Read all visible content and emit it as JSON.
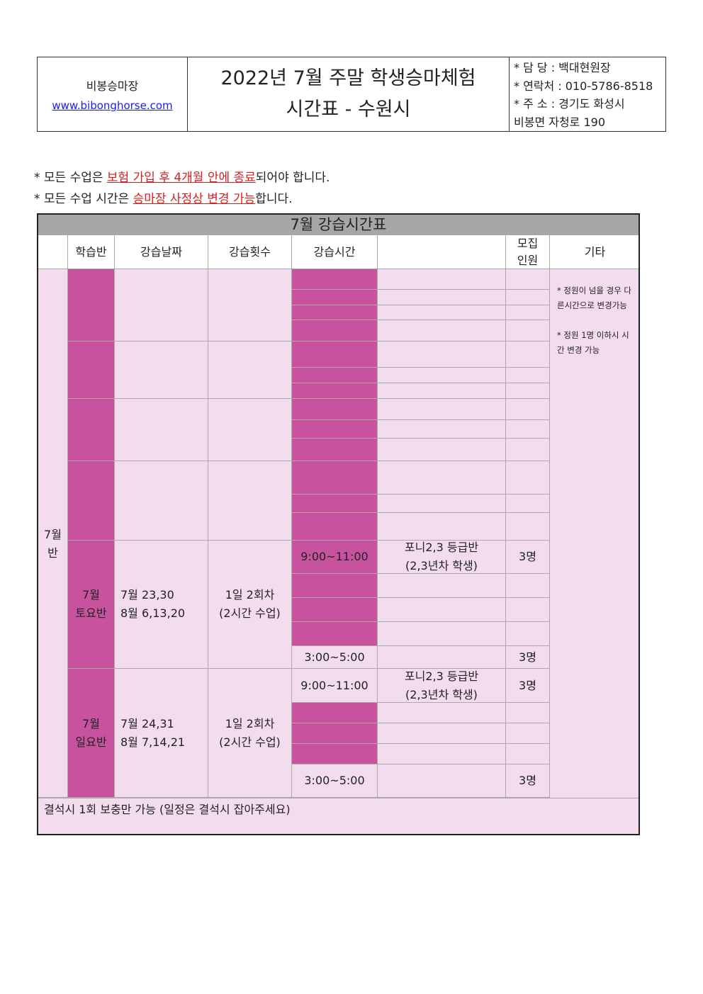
{
  "header": {
    "org_name": "비봉승마장",
    "website": "www.bibonghorse.com",
    "title_line1": "2022년 7월 주말 학생승마체험",
    "title_line2": "시간표 - 수원시",
    "contact": [
      "* 담  당 : 백대현원장",
      "* 연락처 : 010-5786-8518",
      "* 주  소 : 경기도 화성시",
      "비봉면 자청로 190"
    ]
  },
  "notes": {
    "note1_prefix": "* 모든 수업은 ",
    "note1_red": "보험 가입 후 4개월 안에 종료",
    "note1_suffix": "되어야 합니다.",
    "note2_prefix": "* 모든 수업 시간은 ",
    "note2_red": "승마장 사정상 변경 가능",
    "note2_suffix": "합니다."
  },
  "table": {
    "title": "7월 강습시간표",
    "columns": [
      "학습반",
      "강습날짜",
      "강습횟수",
      "강습시간",
      "",
      "모집\n인원",
      "기타"
    ],
    "month_label": "7월\n반",
    "saturday": {
      "class": "7월\n토요반",
      "dates": "7월 23,30\n8월 6,13,20",
      "count": "1일 2회차\n(2시간 수업)",
      "time1": "9:00~11:00",
      "desc": "포니2,3 등급반\n(2,3년차 학생)",
      "cap1": "3명",
      "time2": "3:00~5:00",
      "cap2": "3명"
    },
    "sunday": {
      "class": "7월\n일요반",
      "dates": "7월 24,31\n8월 7,14,21",
      "count": "1일 2회차\n(2시간 수업)",
      "time1": "9:00~11:00",
      "desc": "포니2,3 등급반\n(2,3년차 학생)",
      "cap1": "3명",
      "time2": "3:00~5:00",
      "cap2": "3명"
    },
    "etc_note1": "* 정원이 넘을 경우 다른시간으로 변경가능",
    "etc_note2": "* 정원 1명 이하시 시간 변경 가능",
    "footer": "결석시 1회 보충만 가능 (일정은 결석시 잡아주세요)"
  }
}
